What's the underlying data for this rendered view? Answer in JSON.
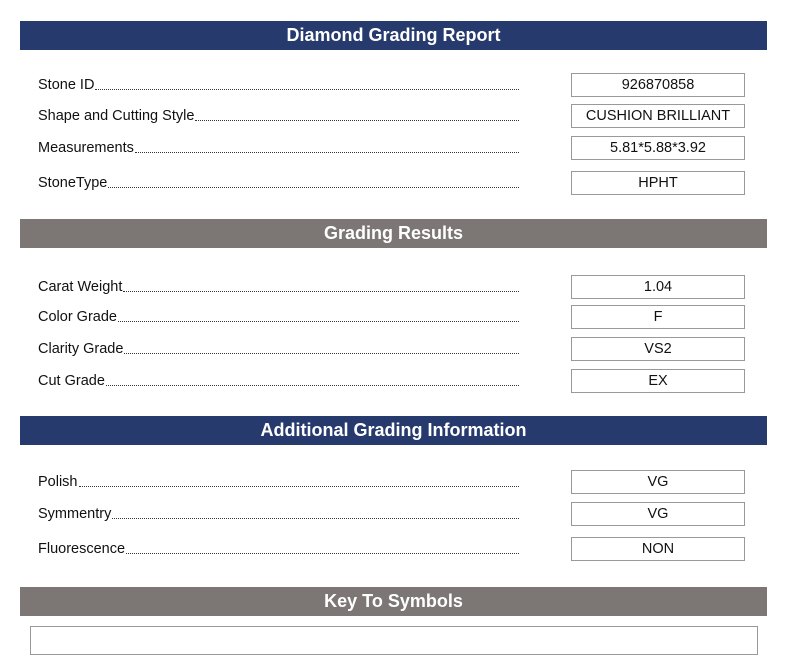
{
  "sections": [
    {
      "title": "Diamond Grading Report",
      "rows": [
        {
          "label": "Stone ID",
          "value": "926870858"
        },
        {
          "label": "Shape and Cutting Style",
          "value": "CUSHION BRILLIANT"
        },
        {
          "label": "Measurements",
          "value": "5.81*5.88*3.92"
        },
        {
          "label": "StoneType",
          "value": "HPHT"
        }
      ]
    },
    {
      "title": "Grading Results",
      "rows": [
        {
          "label": "Carat Weight",
          "value": "1.04"
        },
        {
          "label": "Color Grade",
          "value": "F"
        },
        {
          "label": "Clarity Grade",
          "value": "VS2"
        },
        {
          "label": "Cut Grade",
          "value": "EX"
        }
      ]
    },
    {
      "title": "Additional Grading Information",
      "rows": [
        {
          "label": "Polish",
          "value": "VG"
        },
        {
          "label": "Symmentry",
          "value": "VG"
        },
        {
          "label": "Fluorescence",
          "value": "NON"
        }
      ]
    },
    {
      "title": "Key To Symbols",
      "rows": []
    }
  ]
}
